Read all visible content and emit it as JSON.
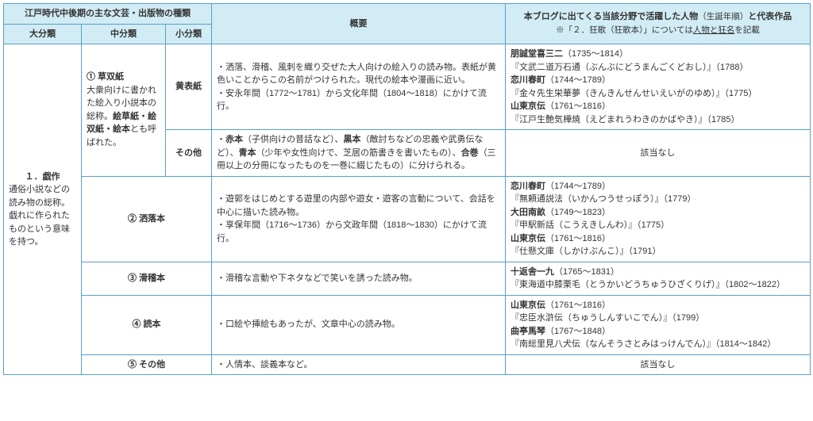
{
  "colors": {
    "border": "#58a0c8",
    "header_bg": "#d1ecf4",
    "text": "#333333",
    "background": "#ffffff"
  },
  "font": {
    "size_pt": 11,
    "family": "Hiragino Kaku Gothic ProN"
  },
  "header": {
    "main_types_title": "江戸時代中後期の主な文芸・出版物の種類",
    "dai": "大分類",
    "chu": "中分類",
    "sho": "小分類",
    "overview": "概要",
    "people_pref": "本ブログに出てくる当該分野で",
    "people_bold": "活躍した人物",
    "people_suffix": "（生誕年順）",
    "people_tail": "と代表作品",
    "note_pref": "※「２．狂歌（狂歌本）」については",
    "note_ul": "人物と狂名",
    "note_suf": "を記載"
  },
  "dai1": {
    "label": "１．戯作",
    "desc": "通俗小説などの読み物の総称。戯れに作られたものという意味を持つ。"
  },
  "chu1": {
    "label": "① 草双紙",
    "desc_pref": "大衆向けに書かれた絵入り小説本の総称。",
    "desc_bold": "絵草紙・絵双紙・絵本",
    "desc_suf": "とも呼ばれた。"
  },
  "sho": {
    "kibyoshi": "黄表紙",
    "other": "その他"
  },
  "chu_labels": {
    "sharebon": "② 洒落本",
    "kokkeibon": "③ 滑稽本",
    "yomihon": "④ 読本",
    "other": "⑤ その他"
  },
  "ov": {
    "kibyoshi": "・洒落、滑稽、風刺を織り交ぜた大人向けの絵入りの読み物。表紙が黄色いことからこの名前がつけられた。現代の絵本や漫画に近い。\n・安永年間（1772～1781）から文化年間（1804～1818）にかけて流行。",
    "other_pref": "・",
    "other_b1": "赤本",
    "other_t1": "（子供向けの昔話など）、",
    "other_b2": "黒本",
    "other_t2": "（敵討ちなどの忠義や武勇伝など）、",
    "other_b3": "青本",
    "other_t3": "（少年や女性向けで、芝居の筋書きを書いたもの）、",
    "other_b4": "合巻",
    "other_t4": "（三冊以上の分冊になったものを一巻に綴じたもの）に分けられる。",
    "sharebon": "・遊郭をはじめとする遊里の内部や遊女・遊客の言動について、会話を中心に描いた読み物。\n・享保年間（1716～1736）から文政年間（1818～1830）にかけて流行。",
    "kokkeibon": "・滑稽な言動や下ネタなどで笑いを誘った読み物。",
    "yomihon": "・口絵や挿絵もあったが、文章中心の読み物。",
    "other5": "・人情本、談義本など。"
  },
  "people": {
    "kibyoshi": {
      "p1n": "朋誠堂喜三二",
      "p1y": "（1735～1814）",
      "p1w": "『文武二道万石通（ぶんぶにどうまんごくどおし）』（1788）",
      "p2n": "恋川春町",
      "p2y": "（1744～1789）",
      "p2w": "『金々先生栄華夢（きんきんせんせいえいがのゆめ）』（1775）",
      "p3n": "山東京伝",
      "p3y": "（1761～1816）",
      "p3w": "『江戸生艶気樺焼（えどまれうわきのかばやき）』（1785）"
    },
    "na": "該当なし",
    "sharebon": {
      "p1n": "恋川春町",
      "p1y": "（1744～1789）",
      "p1w": "『無頼通説法（いかんつうせっぽう）』（1779）",
      "p2n": "大田南畝",
      "p2y": "（1749～1823）",
      "p2w": "『甲駅新話（こうえきしんわ）』（1775）",
      "p3n": "山東京伝",
      "p3y": "（1761～1816）",
      "p3w": "『仕懸文庫（しかけぶんこ）』（1791）"
    },
    "kokkeibon": {
      "p1n": "十返舎一九",
      "p1y": "（1765～1831）",
      "p1w": "『東海道中膝栗毛（とうかいどうちゅうひざくりげ）』（1802～1822）"
    },
    "yomihon": {
      "p1n": "山東京伝",
      "p1y": "（1761～1816）",
      "p1w": "『忠臣水滸伝（ちゅうしんすいこでん）』（1799）",
      "p2n": "曲亭馬琴",
      "p2y": "（1767～1848）",
      "p2w": "『南総里見八犬伝（なんそうさとみはっけんでん）』（1814～1842）"
    }
  }
}
